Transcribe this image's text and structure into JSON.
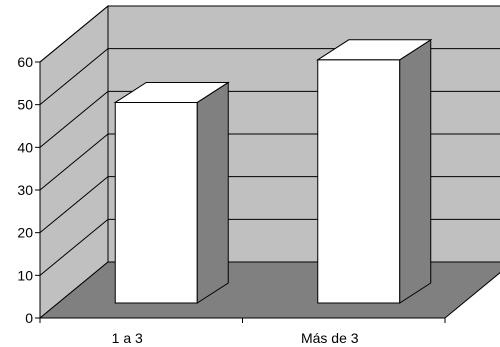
{
  "chart_data": {
    "type": "bar",
    "categories": [
      "1 a 3",
      "Más de 3"
    ],
    "values": [
      47,
      57
    ],
    "ylim": [
      0,
      60
    ],
    "yticks": [
      0,
      10,
      20,
      30,
      40,
      50,
      60
    ],
    "grid": true,
    "three_d": true,
    "legend": "none",
    "colors": {
      "bar_front": "#ffffff",
      "bar_top": "#ffffff",
      "bar_side": "#808080",
      "back_wall": "#c0c0c0",
      "side_wall": "#c0c0c0",
      "floor": "#808080",
      "grid": "#000000"
    }
  }
}
